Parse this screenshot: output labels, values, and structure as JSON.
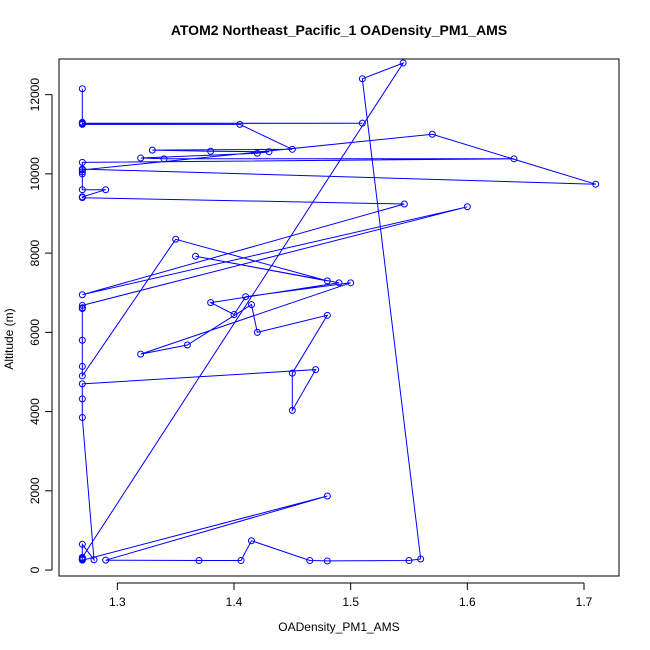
{
  "chart_data": {
    "type": "line",
    "title": "ATOM2 Northeast_Pacific_1 OADensity_PM1_AMS",
    "xlabel": "OADensity_PM1_AMS",
    "ylabel": "Altitude (m)",
    "xlim": [
      1.25,
      1.73
    ],
    "ylim": [
      -150,
      12900
    ],
    "xticks": [
      1.3,
      1.4,
      1.5,
      1.6,
      1.7
    ],
    "yticks": [
      0,
      2000,
      4000,
      6000,
      8000,
      10000,
      12000
    ],
    "grid": false,
    "legend": "none",
    "series_color": "#0000ff",
    "marker": "open-circle",
    "x": [
      1.27,
      1.27,
      1.27,
      1.51,
      1.27,
      1.27,
      1.405,
      1.45,
      1.33,
      1.38,
      1.43,
      1.42,
      1.32,
      1.34,
      1.64,
      1.27,
      1.27,
      1.71,
      1.57,
      1.27,
      1.27,
      1.27,
      1.27,
      1.29,
      1.27,
      1.27,
      1.546,
      1.27,
      1.6,
      1.27,
      1.27,
      1.27,
      1.27,
      1.27,
      1.27,
      1.35,
      1.48,
      1.367,
      1.49,
      1.38,
      1.4,
      1.41,
      1.5,
      1.32,
      1.36,
      1.415,
      1.42,
      1.48,
      1.45,
      1.45,
      1.47,
      1.27,
      1.27,
      1.27,
      1.28,
      1.27,
      1.27,
      1.27,
      1.48,
      1.29,
      1.37,
      1.406,
      1.415,
      1.465,
      1.48,
      1.55,
      1.56,
      1.51,
      1.545,
      1.27,
      1.27,
      1.27
    ],
    "y": [
      12150,
      11300,
      11280,
      11280,
      11270,
      11250,
      11250,
      10620,
      10600,
      10570,
      10560,
      10520,
      10400,
      10380,
      10380,
      10290,
      10120,
      9740,
      11000,
      10100,
      10050,
      10000,
      9600,
      9600,
      9420,
      9400,
      9240,
      6950,
      9170,
      6680,
      6620,
      6600,
      5800,
      5140,
      4900,
      8350,
      7300,
      7920,
      7250,
      6750,
      6450,
      6900,
      7250,
      5450,
      5680,
      6700,
      6000,
      6430,
      4970,
      4030,
      5060,
      4700,
      4320,
      3850,
      260,
      650,
      260,
      250,
      1870,
      250,
      240,
      240,
      740,
      240,
      230,
      240,
      280,
      12400,
      12800,
      320,
      300,
      280
    ]
  }
}
